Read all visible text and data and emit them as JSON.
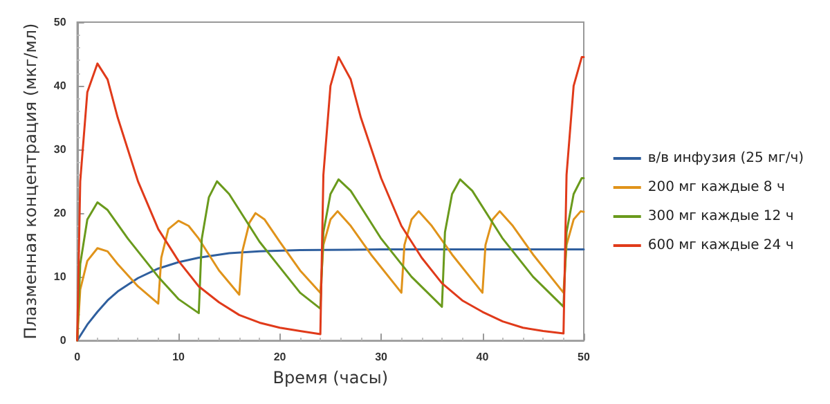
{
  "chart_data": {
    "type": "line",
    "xlabel": "Время (часы)",
    "ylabel": "Плазменная концентрация (мкг/мл)",
    "xlim": [
      0,
      50
    ],
    "ylim": [
      0,
      50
    ],
    "xticks": [
      0,
      10,
      20,
      30,
      40,
      50
    ],
    "yticks": [
      0,
      10,
      20,
      30,
      40,
      50
    ],
    "grid": false,
    "legend": "right",
    "marker": "none",
    "line_style": "solid",
    "series": [
      {
        "name": "в/в инфузия (25 мг/ч)",
        "color": "#2f5f9e",
        "x": [
          0,
          1,
          2,
          3,
          4,
          6,
          8,
          10,
          12,
          15,
          18,
          22,
          30,
          50
        ],
        "values": [
          0,
          2.5,
          4.5,
          6.3,
          7.7,
          9.8,
          11.3,
          12.3,
          13,
          13.7,
          14,
          14.2,
          14.3,
          14.3
        ]
      },
      {
        "name": "200 мг каждые 8 ч",
        "color": "#e0931a",
        "x": [
          0,
          0.3,
          1,
          2,
          3,
          4,
          6,
          8,
          8.3,
          9,
          10,
          11,
          12,
          14,
          16,
          16.3,
          17,
          17.6,
          18.5,
          20,
          22,
          24,
          24.3,
          25,
          25.7,
          27,
          29,
          32,
          32.3,
          33,
          33.7,
          35,
          37,
          40,
          40.3,
          41,
          41.7,
          43,
          45,
          48,
          48.3,
          49,
          49.7,
          50
        ],
        "values": [
          0,
          8,
          12.5,
          14.5,
          14,
          12,
          8.5,
          5.8,
          13,
          17.5,
          18.8,
          18,
          16,
          11,
          7.2,
          14,
          18.5,
          20,
          19,
          15.5,
          11,
          7.5,
          15,
          19,
          20.3,
          18,
          13.5,
          7.5,
          15,
          19,
          20.3,
          18,
          13.5,
          7.5,
          15,
          19,
          20.3,
          18,
          13.5,
          7.5,
          15,
          19,
          20.3,
          20.2
        ]
      },
      {
        "name": "300 мг каждые 12 ч",
        "color": "#6a9a1c",
        "x": [
          0,
          0.3,
          1,
          2,
          3,
          5,
          8,
          10,
          12,
          12.3,
          13,
          13.8,
          15,
          18,
          20,
          22,
          24,
          24.3,
          25,
          25.8,
          27,
          30,
          33,
          36,
          36.3,
          37,
          37.8,
          39,
          42,
          45,
          48,
          48.3,
          49,
          49.8,
          50
        ],
        "values": [
          0,
          12,
          19,
          21.7,
          20.5,
          16,
          10,
          6.5,
          4.3,
          16,
          22.5,
          25,
          23,
          15.5,
          11.5,
          7.5,
          5,
          17,
          23,
          25.3,
          23.5,
          16,
          10,
          5.3,
          17,
          23,
          25.3,
          23.5,
          16,
          10,
          5.3,
          17,
          23,
          25.5,
          25.5
        ]
      },
      {
        "name": "600 мг каждые 24 ч",
        "color": "#e03a1a",
        "x": [
          0,
          0.3,
          1,
          2,
          3,
          4,
          6,
          8,
          10,
          12,
          14,
          16,
          18,
          20,
          22,
          24,
          24.3,
          25,
          25.8,
          27,
          28,
          30,
          32,
          34,
          36,
          38,
          40,
          42,
          44,
          46,
          48,
          48.3,
          49,
          49.8,
          50
        ],
        "values": [
          0,
          25,
          39,
          43.5,
          41,
          35,
          25,
          17.5,
          12.5,
          8.5,
          6,
          4,
          2.8,
          2,
          1.5,
          1,
          26,
          40,
          44.5,
          41,
          35,
          25.5,
          18,
          13,
          9,
          6.3,
          4.5,
          3,
          2,
          1.5,
          1.1,
          26,
          40,
          44.5,
          44.5
        ]
      }
    ]
  }
}
